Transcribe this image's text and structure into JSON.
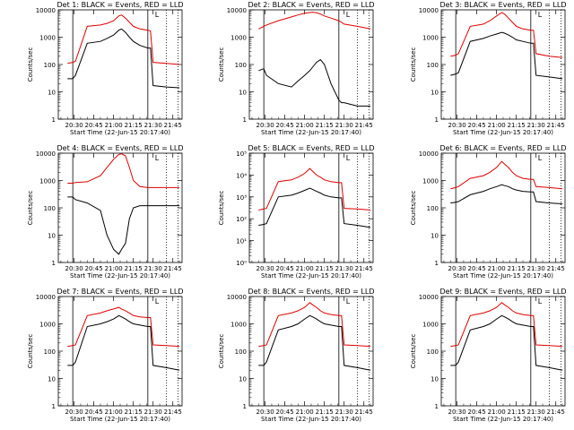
{
  "figure": {
    "time_ticks": [
      "20:30",
      "20:45",
      "21:00",
      "21:15",
      "21:30",
      "21:45"
    ],
    "start_time_label": "Start Time (22-Jun-15 20:17:40)",
    "ylabel": "Counts/sec",
    "legend_mark": "L",
    "colors": {
      "events": "#000000",
      "lld": "#dd0000"
    }
  },
  "chart_data": [
    {
      "type": "line",
      "title": "Det 1: BLACK = Events, RED = LLD",
      "xlabel": "Start Time (22-Jun-15 20:17:40)",
      "ylabel": "Counts/sec",
      "yscale": "log",
      "ylim": [
        1,
        10000
      ],
      "ytick_style": "plain",
      "yticks": [
        "1",
        "10",
        "100",
        "1000",
        "10000"
      ],
      "x": [
        "20:25",
        "20:29",
        "20:31",
        "20:40",
        "20:50",
        "20:55",
        "21:00",
        "21:04",
        "21:06",
        "21:09",
        "21:12",
        "21:15",
        "21:20",
        "21:26",
        "21:28",
        "21:30",
        "21:40",
        "21:50"
      ],
      "series": [
        {
          "name": "BLACK = Events",
          "values": [
            30,
            30,
            40,
            600,
            700,
            900,
            1200,
            1800,
            2000,
            1500,
            1000,
            700,
            500,
            400,
            400,
            17,
            15,
            14
          ]
        },
        {
          "name": "RED = LLD",
          "values": [
            110,
            120,
            130,
            2500,
            2800,
            3200,
            4000,
            6000,
            6500,
            5000,
            3500,
            2500,
            2000,
            1800,
            1700,
            120,
            110,
            100
          ]
        }
      ]
    },
    {
      "type": "line",
      "title": "Det 2: BLACK = Events, RED = LLD",
      "xlabel": "Start Time (22-Jun-15 20:17:40)",
      "ylabel": "Counts/sec",
      "yscale": "log",
      "ylim": [
        1,
        10000
      ],
      "ytick_style": "plain",
      "yticks": [
        "1",
        "10",
        "100",
        "1000",
        "10000"
      ],
      "x": [
        "20:25",
        "20:29",
        "20:31",
        "20:40",
        "20:50",
        "20:55",
        "21:00",
        "21:04",
        "21:06",
        "21:09",
        "21:12",
        "21:15",
        "21:20",
        "21:26",
        "21:28",
        "21:30",
        "21:40",
        "21:50"
      ],
      "series": [
        {
          "name": "BLACK = Events",
          "values": [
            60,
            70,
            40,
            20,
            15,
            25,
            40,
            60,
            80,
            120,
            150,
            100,
            20,
            5,
            4,
            4,
            3,
            3
          ]
        },
        {
          "name": "RED = LLD",
          "values": [
            2000,
            2500,
            2800,
            4000,
            5500,
            6500,
            7500,
            8000,
            8200,
            7800,
            7000,
            6000,
            5000,
            4000,
            3500,
            3000,
            2500,
            2000
          ]
        }
      ]
    },
    {
      "type": "line",
      "title": "Det 3: BLACK = Events, RED = LLD",
      "xlabel": "Start Time (22-Jun-15 20:17:40)",
      "ylabel": "Counts/sec",
      "yscale": "log",
      "ylim": [
        1,
        10000
      ],
      "ytick_style": "plain",
      "yticks": [
        "1",
        "10",
        "100",
        "1000",
        "10000"
      ],
      "x": [
        "20:25",
        "20:29",
        "20:31",
        "20:40",
        "20:50",
        "20:55",
        "21:00",
        "21:04",
        "21:06",
        "21:09",
        "21:12",
        "21:15",
        "21:20",
        "21:26",
        "21:28",
        "21:30",
        "21:40",
        "21:50"
      ],
      "series": [
        {
          "name": "BLACK = Events",
          "values": [
            40,
            45,
            50,
            700,
            900,
            1100,
            1300,
            1500,
            1400,
            1200,
            1000,
            800,
            700,
            600,
            600,
            40,
            35,
            30
          ]
        },
        {
          "name": "RED = LLD",
          "values": [
            200,
            220,
            250,
            2500,
            3000,
            4000,
            6000,
            8000,
            7000,
            5000,
            3500,
            2500,
            2000,
            1800,
            1800,
            250,
            200,
            180
          ]
        }
      ]
    },
    {
      "type": "line",
      "title": "Det 4: BLACK = Events, RED = LLD",
      "xlabel": "Start Time (22-Jun-15 20:17:40)",
      "ylabel": "Counts/sec",
      "yscale": "log",
      "ylim": [
        1,
        10000
      ],
      "ytick_style": "plain",
      "yticks": [
        "1",
        "10",
        "100",
        "1000",
        "10000"
      ],
      "x": [
        "20:25",
        "20:29",
        "20:31",
        "20:40",
        "20:50",
        "20:55",
        "21:00",
        "21:04",
        "21:06",
        "21:09",
        "21:12",
        "21:15",
        "21:20",
        "21:26",
        "21:28",
        "21:30",
        "21:40",
        "21:50"
      ],
      "series": [
        {
          "name": "BLACK = Events",
          "values": [
            250,
            250,
            200,
            150,
            80,
            10,
            3,
            2,
            3,
            5,
            40,
            100,
            120,
            120,
            120,
            120,
            120,
            120
          ]
        },
        {
          "name": "RED = LLD",
          "values": [
            800,
            800,
            850,
            900,
            1500,
            3000,
            6000,
            9000,
            9500,
            8000,
            3000,
            1000,
            600,
            550,
            550,
            550,
            550,
            550
          ]
        }
      ]
    },
    {
      "type": "line",
      "title": "Det 5: BLACK = Events, RED = LLD",
      "xlabel": "Start Time (22-Jun-15 20:17:40)",
      "ylabel": "Counts/sec",
      "yscale": "log",
      "ylim": [
        1,
        100000
      ],
      "ytick_style": "power",
      "yticks": [
        "10⁰",
        "10¹",
        "10²",
        "10³",
        "10⁴",
        "10⁵"
      ],
      "x": [
        "20:25",
        "20:29",
        "20:31",
        "20:40",
        "20:50",
        "20:55",
        "21:00",
        "21:04",
        "21:06",
        "21:09",
        "21:12",
        "21:15",
        "21:20",
        "21:26",
        "21:28",
        "21:30",
        "21:40",
        "21:50"
      ],
      "series": [
        {
          "name": "BLACK = Events",
          "values": [
            50,
            55,
            60,
            1000,
            1200,
            1500,
            2000,
            2500,
            2200,
            1800,
            1500,
            1200,
            1000,
            900,
            900,
            60,
            50,
            40
          ]
        },
        {
          "name": "RED = LLD",
          "values": [
            250,
            280,
            300,
            5000,
            6000,
            8000,
            12000,
            20000,
            15000,
            10000,
            8000,
            6000,
            5000,
            4500,
            4500,
            300,
            280,
            250
          ]
        }
      ]
    },
    {
      "type": "line",
      "title": "Det 6: BLACK = Events, RED = LLD",
      "xlabel": "Start Time (22-Jun-15 20:17:40)",
      "ylabel": "Counts/sec",
      "yscale": "log",
      "ylim": [
        1,
        10000
      ],
      "ytick_style": "plain",
      "yticks": [
        "1",
        "10",
        "100",
        "1000",
        "10000"
      ],
      "x": [
        "20:25",
        "20:29",
        "20:31",
        "20:40",
        "20:50",
        "20:55",
        "21:00",
        "21:04",
        "21:06",
        "21:09",
        "21:12",
        "21:15",
        "21:20",
        "21:26",
        "21:28",
        "21:30",
        "21:40",
        "21:50"
      ],
      "series": [
        {
          "name": "BLACK = Events",
          "values": [
            150,
            160,
            170,
            300,
            400,
            500,
            600,
            700,
            650,
            600,
            500,
            450,
            400,
            380,
            380,
            170,
            150,
            140
          ]
        },
        {
          "name": "RED = LLD",
          "values": [
            500,
            550,
            600,
            1200,
            1500,
            2000,
            3000,
            5000,
            4000,
            3000,
            2000,
            1500,
            1200,
            1100,
            1100,
            600,
            550,
            500
          ]
        }
      ]
    },
    {
      "type": "line",
      "title": "Det 7: BLACK = Events, RED = LLD",
      "xlabel": "Start Time (22-Jun-15 20:17:40)",
      "ylabel": "Counts/sec",
      "yscale": "log",
      "ylim": [
        1,
        10000
      ],
      "ytick_style": "plain",
      "yticks": [
        "1",
        "10",
        "100",
        "1000",
        "10000"
      ],
      "x": [
        "20:25",
        "20:29",
        "20:31",
        "20:40",
        "20:50",
        "20:55",
        "21:00",
        "21:04",
        "21:06",
        "21:09",
        "21:12",
        "21:15",
        "21:20",
        "21:26",
        "21:28",
        "21:30",
        "21:40",
        "21:50"
      ],
      "series": [
        {
          "name": "BLACK = Events",
          "values": [
            30,
            30,
            40,
            800,
            1000,
            1200,
            1500,
            2000,
            1800,
            1500,
            1200,
            1000,
            900,
            800,
            800,
            30,
            25,
            20
          ]
        },
        {
          "name": "RED = LLD",
          "values": [
            150,
            160,
            170,
            2000,
            2500,
            3000,
            3500,
            4000,
            3500,
            3000,
            2500,
            2000,
            1800,
            1700,
            1700,
            170,
            160,
            150
          ]
        }
      ]
    },
    {
      "type": "line",
      "title": "Det 8: BLACK = Events, RED = LLD",
      "xlabel": "Start Time (22-Jun-15 20:17:40)",
      "ylabel": "Counts/sec",
      "yscale": "log",
      "ylim": [
        1,
        10000
      ],
      "ytick_style": "plain",
      "yticks": [
        "1",
        "10",
        "100",
        "1000",
        "10000"
      ],
      "x": [
        "20:25",
        "20:29",
        "20:31",
        "20:40",
        "20:50",
        "20:55",
        "21:00",
        "21:04",
        "21:06",
        "21:09",
        "21:12",
        "21:15",
        "21:20",
        "21:26",
        "21:28",
        "21:30",
        "21:40",
        "21:50"
      ],
      "series": [
        {
          "name": "BLACK = Events",
          "values": [
            30,
            30,
            40,
            600,
            800,
            1000,
            1500,
            2000,
            1800,
            1500,
            1200,
            1000,
            900,
            800,
            800,
            30,
            25,
            20
          ]
        },
        {
          "name": "RED = LLD",
          "values": [
            150,
            160,
            170,
            2000,
            2500,
            3000,
            4000,
            6000,
            5000,
            4000,
            3000,
            2500,
            2200,
            2000,
            2000,
            170,
            160,
            150
          ]
        }
      ]
    },
    {
      "type": "line",
      "title": "Det 9: BLACK = Events, RED = LLD",
      "xlabel": "Start Time (22-Jun-15 20:17:40)",
      "ylabel": "Counts/sec",
      "yscale": "log",
      "ylim": [
        1,
        10000
      ],
      "ytick_style": "plain",
      "yticks": [
        "1",
        "10",
        "100",
        "1000",
        "10000"
      ],
      "x": [
        "20:25",
        "20:29",
        "20:31",
        "20:40",
        "20:50",
        "20:55",
        "21:00",
        "21:04",
        "21:06",
        "21:09",
        "21:12",
        "21:15",
        "21:20",
        "21:26",
        "21:28",
        "21:30",
        "21:40",
        "21:50"
      ],
      "series": [
        {
          "name": "BLACK = Events",
          "values": [
            30,
            30,
            40,
            600,
            800,
            1000,
            1500,
            2000,
            1800,
            1500,
            1200,
            1000,
            900,
            800,
            800,
            30,
            25,
            20
          ]
        },
        {
          "name": "RED = LLD",
          "values": [
            150,
            160,
            170,
            2000,
            2500,
            3000,
            4000,
            6000,
            5000,
            4000,
            3000,
            2500,
            2200,
            2000,
            2000,
            170,
            160,
            150
          ]
        }
      ]
    }
  ]
}
